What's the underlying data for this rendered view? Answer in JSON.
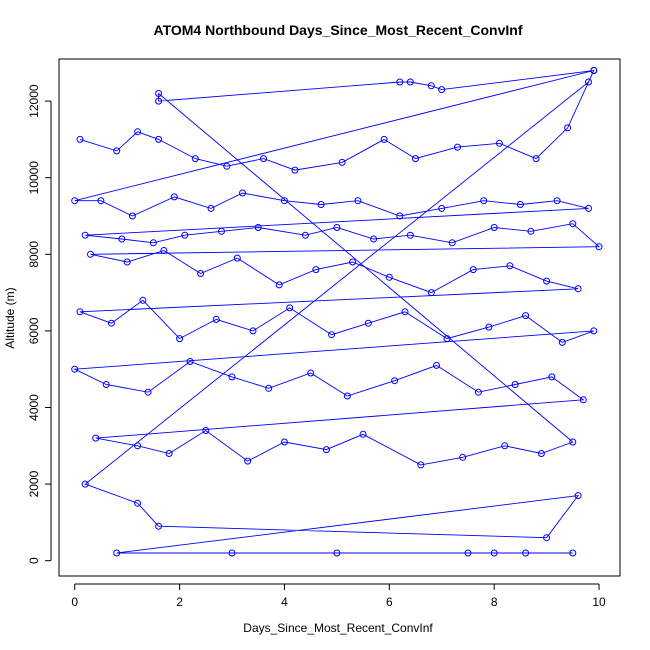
{
  "chart_data": {
    "type": "scatter",
    "title": "ATOM4 Northbound Days_Since_Most_Recent_ConvInf",
    "xlabel": "Days_Since_Most_Recent_ConvInf",
    "ylabel": "Altitude (m)",
    "xlim": [
      -0.3,
      10.4
    ],
    "ylim": [
      -400,
      13100
    ],
    "x_ticks": [
      0,
      2,
      4,
      6,
      8,
      10
    ],
    "y_ticks": [
      0,
      2000,
      4000,
      6000,
      8000,
      10000,
      12000
    ],
    "grid": false,
    "point_style": "open-circle",
    "connect_points": true,
    "color": "#0000ff",
    "series": [
      {
        "name": "",
        "x": [
          0.1,
          0.8,
          1.2,
          1.6,
          2.3,
          2.9,
          3.6,
          4.2,
          5.1,
          5.9,
          6.5,
          7.3,
          8.1,
          8.8,
          9.4,
          9.9,
          0.0,
          0.5,
          1.1,
          1.9,
          2.6,
          3.2,
          4.0,
          4.7,
          5.4,
          6.2,
          7.0,
          7.8,
          8.5,
          9.2,
          9.8,
          0.2,
          0.9,
          1.5,
          2.1,
          2.8,
          3.5,
          4.4,
          5.0,
          5.7,
          6.4,
          7.2,
          8.0,
          8.7,
          9.5,
          10.0,
          0.3,
          1.0,
          1.7,
          2.4,
          3.1,
          3.9,
          4.6,
          5.3,
          6.0,
          6.8,
          7.6,
          8.3,
          9.0,
          9.6,
          0.1,
          0.7,
          1.3,
          2.0,
          2.7,
          3.4,
          4.1,
          4.9,
          5.6,
          6.3,
          7.1,
          7.9,
          8.6,
          9.3,
          9.9,
          0.0,
          0.6,
          1.4,
          2.2,
          3.0,
          3.7,
          4.5,
          5.2,
          6.1,
          6.9,
          7.7,
          8.4,
          9.1,
          9.7,
          0.4,
          1.2,
          1.8,
          2.5,
          3.3,
          4.0,
          4.8,
          5.5,
          6.6,
          7.4,
          8.2,
          8.9,
          9.5,
          1.6,
          1.6,
          6.2,
          6.4,
          6.8,
          7.0,
          9.9,
          9.8,
          0.2,
          1.2,
          1.6,
          9.0,
          9.6,
          0.8,
          3.0,
          5.0,
          7.5,
          8.0,
          8.6,
          9.5
        ],
        "y": [
          11000,
          10700,
          11200,
          11000,
          10500,
          10300,
          10500,
          10200,
          10400,
          11000,
          10500,
          10800,
          10900,
          10500,
          11300,
          12800,
          9400,
          9400,
          9000,
          9500,
          9200,
          9600,
          9400,
          9300,
          9400,
          9000,
          9200,
          9400,
          9300,
          9400,
          9200,
          8500,
          8400,
          8300,
          8500,
          8600,
          8700,
          8500,
          8700,
          8400,
          8500,
          8300,
          8700,
          8600,
          8800,
          8200,
          8000,
          7800,
          8100,
          7500,
          7900,
          7200,
          7600,
          7800,
          7400,
          7000,
          7600,
          7700,
          7300,
          7100,
          6500,
          6200,
          6800,
          5800,
          6300,
          6000,
          6600,
          5900,
          6200,
          6500,
          5800,
          6100,
          6400,
          5700,
          6000,
          5000,
          4600,
          4400,
          5200,
          4800,
          4500,
          4900,
          4300,
          4700,
          5100,
          4400,
          4600,
          4800,
          4200,
          3200,
          3000,
          2800,
          3400,
          2600,
          3100,
          2900,
          3300,
          2500,
          2700,
          3000,
          2800,
          3100,
          12200,
          12000,
          12500,
          12500,
          12400,
          12300,
          12800,
          12500,
          2000,
          1500,
          900,
          600,
          1700,
          200,
          200,
          200,
          200,
          200,
          200,
          200
        ]
      }
    ]
  }
}
